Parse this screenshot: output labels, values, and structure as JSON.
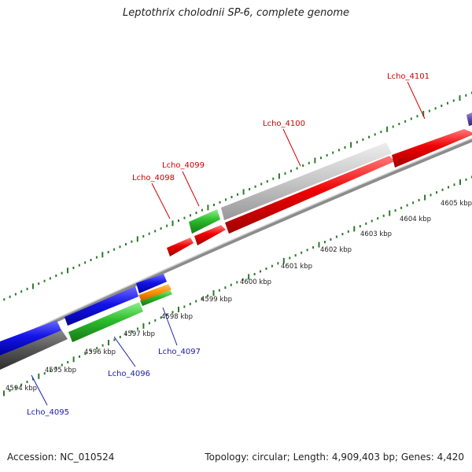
{
  "title": "Leptothrix cholodnii SP-6, complete genome",
  "accession_label": "Accession: NC_010524",
  "topology_label": "Topology: circular; Length: 4,909,403 bp; Genes: 4,420",
  "colors": {
    "label_forward": "#cc0000",
    "label_reverse": "#1a1aaa",
    "ruler_tick": "#2a7a2a",
    "backbone": "#8c8c8c"
  },
  "ruler_labels": [
    {
      "pos_kbp": 4594,
      "text": "4594 kbp"
    },
    {
      "pos_kbp": 4595,
      "text": "4595 kbp"
    },
    {
      "pos_kbp": 4596,
      "text": "4596 kbp"
    },
    {
      "pos_kbp": 4597,
      "text": "4597 kbp"
    },
    {
      "pos_kbp": 4598,
      "text": "4598 kbp"
    },
    {
      "pos_kbp": 4599,
      "text": "4599 kbp"
    },
    {
      "pos_kbp": 4600,
      "text": "4600 kbp"
    },
    {
      "pos_kbp": 4601,
      "text": "4601 kbp"
    },
    {
      "pos_kbp": 4602,
      "text": "4602 kbp"
    },
    {
      "pos_kbp": 4603,
      "text": "4603 kbp"
    },
    {
      "pos_kbp": 4604,
      "text": "4604 kbp"
    },
    {
      "pos_kbp": 4605,
      "text": "4605 kbp"
    }
  ],
  "gene_labels": [
    {
      "text": "Lcho_4095",
      "strand": "reverse"
    },
    {
      "text": "Lcho_4096",
      "strand": "reverse"
    },
    {
      "text": "Lcho_4097",
      "strand": "reverse"
    },
    {
      "text": "Lcho_4098",
      "strand": "forward"
    },
    {
      "text": "Lcho_4099",
      "strand": "forward"
    },
    {
      "text": "Lcho_4100",
      "strand": "forward"
    },
    {
      "text": "Lcho_4101",
      "strand": "forward"
    }
  ]
}
